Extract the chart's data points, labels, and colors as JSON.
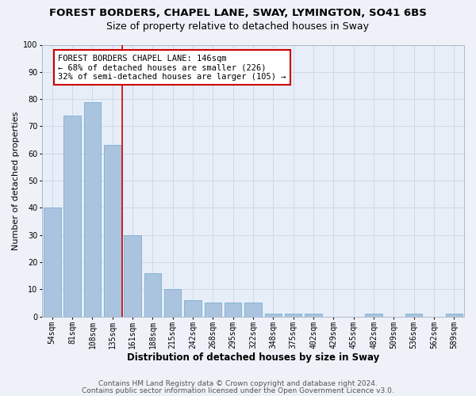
{
  "title1": "FOREST BORDERS, CHAPEL LANE, SWAY, LYMINGTON, SO41 6BS",
  "title2": "Size of property relative to detached houses in Sway",
  "xlabel": "Distribution of detached houses by size in Sway",
  "ylabel": "Number of detached properties",
  "categories": [
    "54sqm",
    "81sqm",
    "108sqm",
    "135sqm",
    "161sqm",
    "188sqm",
    "215sqm",
    "242sqm",
    "268sqm",
    "295sqm",
    "322sqm",
    "348sqm",
    "375sqm",
    "402sqm",
    "429sqm",
    "455sqm",
    "482sqm",
    "509sqm",
    "536sqm",
    "562sqm",
    "589sqm"
  ],
  "values": [
    40,
    74,
    79,
    63,
    30,
    16,
    10,
    6,
    5,
    5,
    5,
    1,
    1,
    1,
    0,
    0,
    1,
    0,
    1,
    0,
    1
  ],
  "bar_color": "#aac4e0",
  "bar_edgecolor": "#7aaed0",
  "vline_x": 3.5,
  "vline_color": "#cc0000",
  "annotation_box_text": "FOREST BORDERS CHAPEL LANE: 146sqm\n← 68% of detached houses are smaller (226)\n32% of semi-detached houses are larger (105) →",
  "box_color": "#ffffff",
  "box_edgecolor": "#cc0000",
  "ylim": [
    0,
    100
  ],
  "yticks": [
    0,
    10,
    20,
    30,
    40,
    50,
    60,
    70,
    80,
    90,
    100
  ],
  "grid_color": "#d0d8e8",
  "bg_color": "#e8eef8",
  "fig_bg_color": "#eef2f8",
  "footer1": "Contains HM Land Registry data © Crown copyright and database right 2024.",
  "footer2": "Contains public sector information licensed under the Open Government Licence v3.0.",
  "title1_fontsize": 9.5,
  "title2_fontsize": 9,
  "xlabel_fontsize": 8.5,
  "ylabel_fontsize": 8,
  "tick_fontsize": 7,
  "annotation_fontsize": 7.5,
  "footer_fontsize": 6.5
}
